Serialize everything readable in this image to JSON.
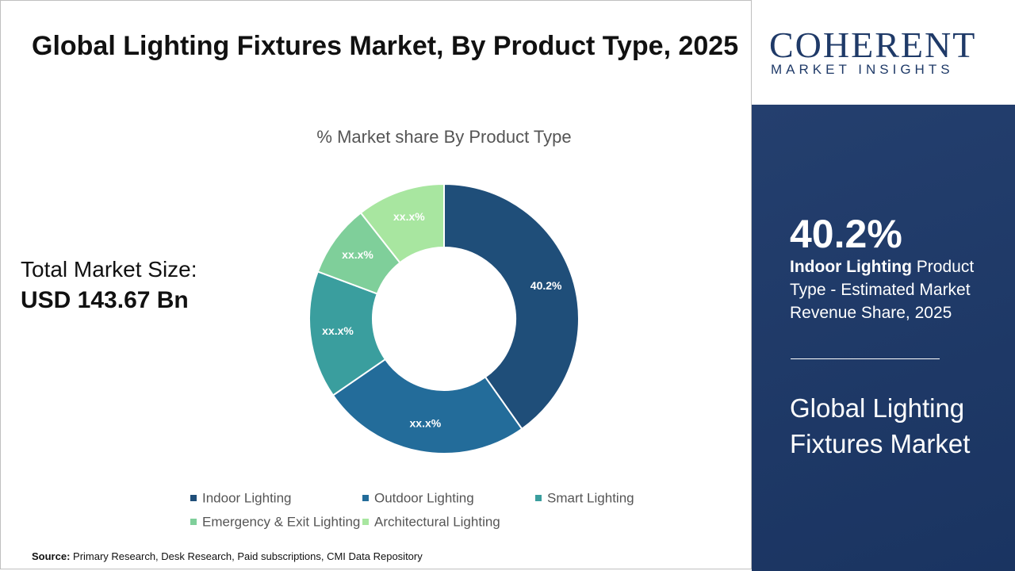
{
  "header": {
    "title": "Global Lighting Fixtures Market, By Product Type, 2025"
  },
  "total": {
    "label": "Total Market Size:",
    "value": "USD 143.67 Bn"
  },
  "chart_data": {
    "type": "donut",
    "subtitle": "% Market share By Product Type",
    "categories": [
      "Indoor Lighting",
      "Outdoor Lighting",
      "Smart Lighting",
      "Emergency & Exit Lighting",
      "Architectural Lighting"
    ],
    "values": [
      40.2,
      25.2,
      15.3,
      8.7,
      10.6
    ],
    "value_labels": [
      "40.2%",
      "xx.x%",
      "xx.x%",
      "xx.x%",
      "xx.x%"
    ],
    "colors": [
      "#1f4e79",
      "#236c9a",
      "#3a9e9e",
      "#7fcf9a",
      "#a8e6a0"
    ],
    "legend": "bottom"
  },
  "highlight": {
    "text": "Product Type - Estimated Market Revenue Share, 2025"
  },
  "panel": {
    "title": "Global Lighting Fixtures Market"
  },
  "logo": {
    "name": "COHERENT",
    "tagline": "MARKET INSIGHTS"
  },
  "source": {
    "label": "Source:",
    "text": "Primary Research, Desk Research, Paid subscriptions, CMI Data Repository"
  }
}
